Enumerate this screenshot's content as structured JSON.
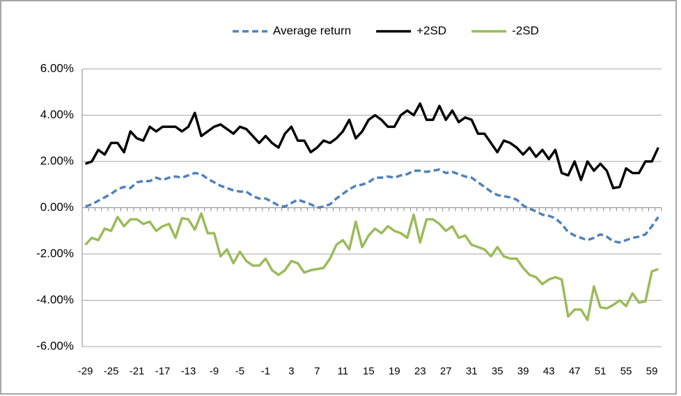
{
  "chart_data": {
    "type": "line",
    "categories": [
      "-29",
      null,
      null,
      null,
      "-25",
      null,
      null,
      null,
      "-21",
      null,
      null,
      null,
      "-17",
      null,
      null,
      null,
      "-13",
      null,
      null,
      null,
      "-9",
      null,
      null,
      null,
      "-5",
      null,
      null,
      null,
      "-1",
      null,
      null,
      null,
      "3",
      null,
      null,
      null,
      "7",
      null,
      null,
      null,
      "11",
      null,
      null,
      null,
      "15",
      null,
      null,
      null,
      "19",
      null,
      null,
      null,
      "23",
      null,
      null,
      null,
      "27",
      null,
      null,
      null,
      "31",
      null,
      null,
      null,
      "35",
      null,
      null,
      null,
      "39",
      null,
      null,
      null,
      "43",
      null,
      null,
      null,
      "47",
      null,
      null,
      null,
      "51",
      null,
      null,
      null,
      "55",
      null,
      null,
      null,
      "59",
      null
    ],
    "series": [
      {
        "name": "Average return",
        "color": "#4f81bd",
        "line_style": "dashed",
        "values": [
          0.05,
          0.15,
          0.3,
          0.45,
          0.6,
          0.8,
          0.9,
          0.85,
          1.1,
          1.15,
          1.15,
          1.3,
          1.2,
          1.3,
          1.35,
          1.3,
          1.4,
          1.5,
          1.45,
          1.25,
          1.1,
          0.95,
          0.85,
          0.75,
          0.7,
          0.7,
          0.5,
          0.4,
          0.4,
          0.25,
          0.1,
          0.05,
          0.2,
          0.35,
          0.25,
          0.15,
          0.0,
          0.05,
          0.15,
          0.4,
          0.6,
          0.8,
          0.95,
          1.0,
          1.1,
          1.3,
          1.3,
          1.35,
          1.3,
          1.4,
          1.45,
          1.6,
          1.6,
          1.55,
          1.6,
          1.65,
          1.5,
          1.55,
          1.45,
          1.35,
          1.3,
          1.1,
          0.9,
          0.7,
          0.55,
          0.5,
          0.45,
          0.35,
          0.1,
          -0.05,
          -0.15,
          -0.3,
          -0.35,
          -0.45,
          -0.7,
          -1.05,
          -1.2,
          -1.3,
          -1.4,
          -1.3,
          -1.15,
          -1.25,
          -1.45,
          -1.5,
          -1.4,
          -1.3,
          -1.25,
          -1.15,
          -0.8,
          -0.4
        ]
      },
      {
        "name": "+2SD",
        "color": "#000000",
        "line_style": "solid",
        "values": [
          1.9,
          2.0,
          2.5,
          2.3,
          2.8,
          2.8,
          2.4,
          3.3,
          3.0,
          2.9,
          3.5,
          3.3,
          3.5,
          3.5,
          3.5,
          3.3,
          3.5,
          4.1,
          3.1,
          3.3,
          3.5,
          3.6,
          3.4,
          3.2,
          3.5,
          3.4,
          3.1,
          2.8,
          3.1,
          2.8,
          2.6,
          3.2,
          3.5,
          2.9,
          2.9,
          2.4,
          2.6,
          2.9,
          2.8,
          3.0,
          3.3,
          3.8,
          3.0,
          3.3,
          3.8,
          4.0,
          3.8,
          3.5,
          3.5,
          4.0,
          4.2,
          4.0,
          4.5,
          3.8,
          3.8,
          4.4,
          3.8,
          4.2,
          3.7,
          3.9,
          3.8,
          3.2,
          3.2,
          2.8,
          2.4,
          2.9,
          2.8,
          2.6,
          2.3,
          2.6,
          2.2,
          2.5,
          2.1,
          2.5,
          1.5,
          1.4,
          2.0,
          1.2,
          2.0,
          1.6,
          1.9,
          1.6,
          0.85,
          0.9,
          1.7,
          1.5,
          1.5,
          2.0,
          2.0,
          2.6
        ]
      },
      {
        "name": "-2SD",
        "color": "#9bbb59",
        "line_style": "solid",
        "values": [
          -1.6,
          -1.3,
          -1.4,
          -0.9,
          -1.0,
          -0.4,
          -0.8,
          -0.5,
          -0.5,
          -0.7,
          -0.6,
          -1.0,
          -0.8,
          -0.7,
          -1.3,
          -0.45,
          -0.5,
          -0.95,
          -0.25,
          -1.1,
          -1.1,
          -2.1,
          -1.8,
          -2.4,
          -1.9,
          -2.3,
          -2.5,
          -2.5,
          -2.2,
          -2.7,
          -2.9,
          -2.7,
          -2.3,
          -2.4,
          -2.8,
          -2.7,
          -2.65,
          -2.6,
          -2.2,
          -1.6,
          -1.4,
          -1.8,
          -0.6,
          -1.7,
          -1.2,
          -0.9,
          -1.1,
          -0.8,
          -1.0,
          -1.1,
          -1.3,
          -0.3,
          -1.5,
          -0.5,
          -0.5,
          -0.7,
          -1.0,
          -0.8,
          -1.3,
          -1.2,
          -1.6,
          -1.7,
          -1.8,
          -2.1,
          -1.7,
          -2.1,
          -2.2,
          -2.2,
          -2.6,
          -2.9,
          -3.0,
          -3.3,
          -3.1,
          -3.0,
          -3.1,
          -4.7,
          -4.4,
          -4.4,
          -4.85,
          -3.4,
          -4.3,
          -4.35,
          -4.2,
          -4.0,
          -4.25,
          -3.7,
          -4.1,
          -4.05,
          -2.75,
          -2.65
        ]
      }
    ],
    "ylim": [
      -6,
      6
    ],
    "yticks": [
      {
        "value": -6,
        "label": "-6.00%"
      },
      {
        "value": -4,
        "label": "-4.00%"
      },
      {
        "value": -2,
        "label": "-2.00%"
      },
      {
        "value": 0,
        "label": "0.00%"
      },
      {
        "value": 2,
        "label": "2.00%"
      },
      {
        "value": 4,
        "label": "4.00%"
      },
      {
        "value": 6,
        "label": "6.00%"
      }
    ],
    "grid": true,
    "legend": "top"
  }
}
